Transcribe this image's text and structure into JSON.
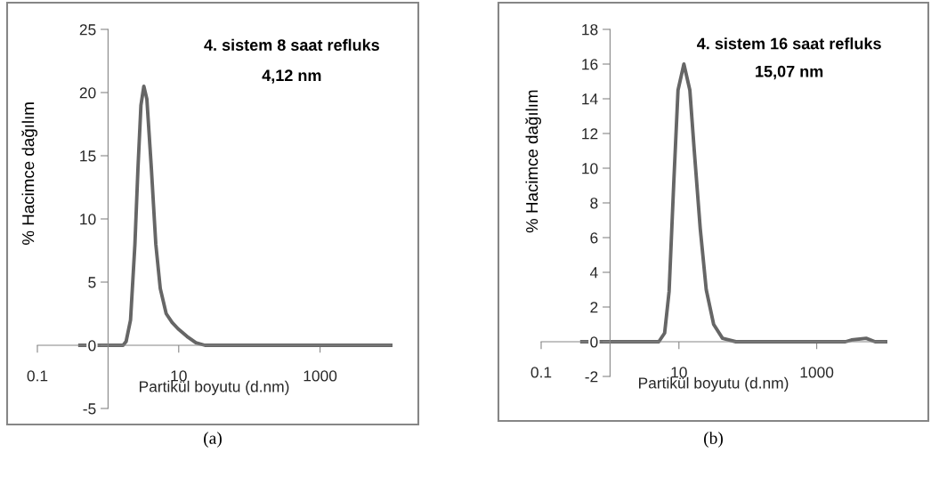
{
  "chart_data": [
    {
      "type": "line",
      "title": "4. sistem 8 saat refluks",
      "subtitle": "4,12 nm",
      "xlabel": "Partikül boyutu (d.nm)",
      "ylabel": "% Hacimce dağılım",
      "annotations": [
        "(a)"
      ],
      "log": "x",
      "xlim": [
        0.1,
        10000
      ],
      "xticks": [
        0.1,
        10,
        1000
      ],
      "ylim": [
        -5,
        25
      ],
      "yticks": [
        -5,
        0,
        5,
        10,
        15,
        20,
        25
      ],
      "series": [
        {
          "color": "#666666",
          "x": [
            0.4,
            1.63,
            1.8,
            2.08,
            2.4,
            2.65,
            2.92,
            3.21,
            3.54,
            4.1,
            4.74,
            5.48,
            6.65,
            8.07,
            9.8,
            13.1,
            17.5,
            23.5,
            10000
          ],
          "values": [
            0,
            0,
            0.3,
            2,
            8,
            14,
            19,
            20.5,
            19.5,
            14,
            8,
            4.5,
            2.5,
            1.8,
            1.3,
            0.7,
            0.2,
            0,
            0
          ]
        }
      ]
    },
    {
      "type": "line",
      "title": "4. sistem 16 saat refluks",
      "subtitle": "15,07 nm",
      "xlabel": "Partikül boyutu (d.nm)",
      "ylabel": "% Hacimce dağılım",
      "annotations": [
        "(b)"
      ],
      "log": "x",
      "xlim": [
        0.1,
        10000
      ],
      "xticks": [
        0.1,
        10,
        1000
      ],
      "ylim": [
        -2,
        18
      ],
      "yticks": [
        -2,
        0,
        2,
        4,
        6,
        8,
        10,
        12,
        14,
        16,
        18
      ],
      "series": [
        {
          "color": "#666666",
          "x": [
            0.39,
            5.1,
            6.2,
            7.2,
            8.4,
            9.7,
            11.8,
            14.4,
            16.7,
            20.4,
            24.9,
            31.9,
            42.9,
            67,
            2610,
            3190,
            5220,
            7030,
            10000
          ],
          "values": [
            0,
            0,
            0.5,
            2.9,
            9.1,
            14.5,
            16,
            14.5,
            11,
            6.5,
            3,
            1,
            0.2,
            0,
            0,
            0.1,
            0.2,
            0,
            0
          ]
        }
      ]
    }
  ]
}
